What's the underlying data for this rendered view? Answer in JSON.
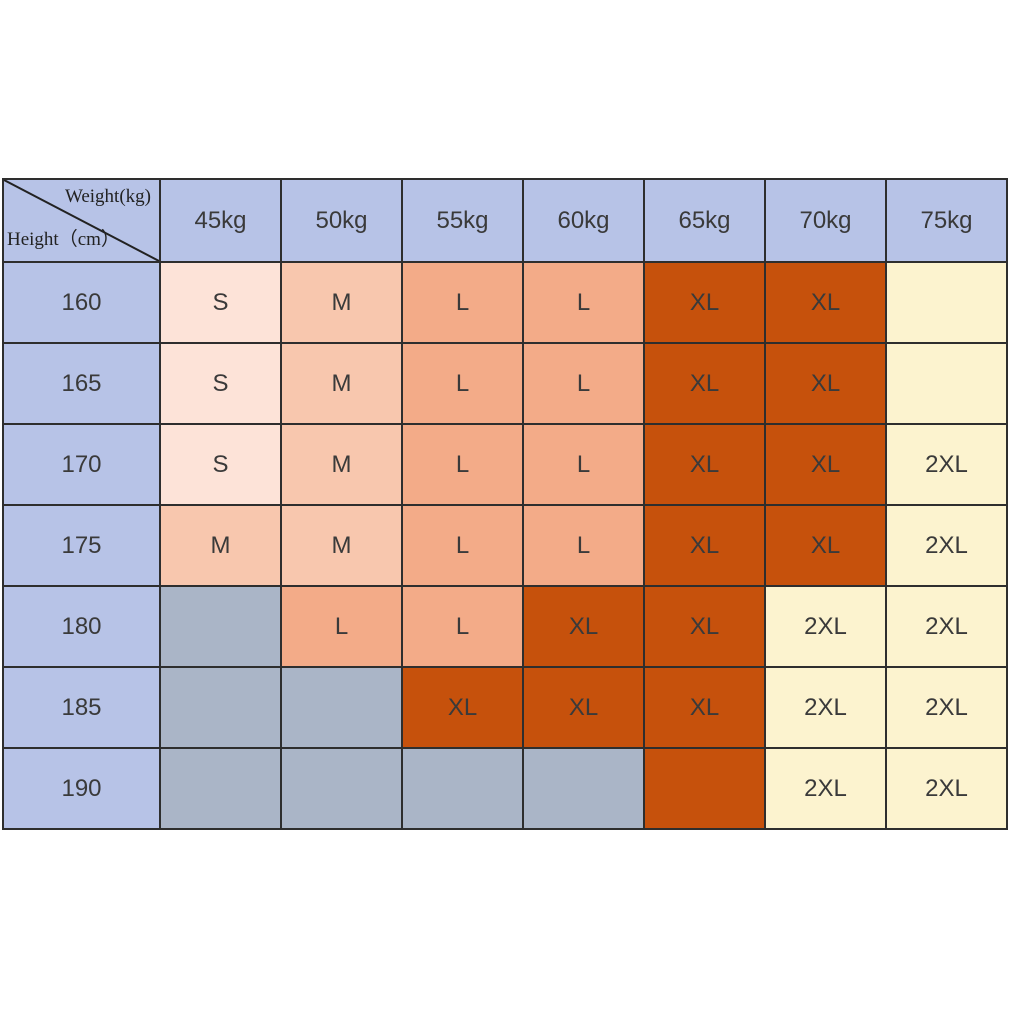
{
  "chart_data": {
    "type": "table",
    "corner": {
      "column_axis_label": "Weight(kg)",
      "row_axis_label": "Height（cm）"
    },
    "weights": [
      "45kg",
      "50kg",
      "55kg",
      "60kg",
      "65kg",
      "70kg",
      "75kg"
    ],
    "heights": [
      "160",
      "165",
      "170",
      "175",
      "180",
      "185",
      "190"
    ],
    "sizes": [
      [
        "S",
        "M",
        "L",
        "L",
        "XL",
        "XL",
        ""
      ],
      [
        "S",
        "M",
        "L",
        "L",
        "XL",
        "XL",
        ""
      ],
      [
        "S",
        "M",
        "L",
        "L",
        "XL",
        "XL",
        "2XL"
      ],
      [
        "M",
        "M",
        "L",
        "L",
        "XL",
        "XL",
        "2XL"
      ],
      [
        "",
        "L",
        "L",
        "XL",
        "XL",
        "2XL",
        "2XL"
      ],
      [
        "",
        "",
        "XL",
        "XL",
        "XL",
        "2XL",
        "2XL"
      ],
      [
        "",
        "",
        "",
        "",
        "",
        "2XL",
        "2XL"
      ]
    ],
    "cell_fill": [
      [
        "S",
        "M",
        "L",
        "L",
        "XL",
        "XL",
        "2XL"
      ],
      [
        "S",
        "M",
        "L",
        "L",
        "XL",
        "XL",
        "2XL"
      ],
      [
        "S",
        "M",
        "L",
        "L",
        "XL",
        "XL",
        "2XL"
      ],
      [
        "M",
        "M",
        "L",
        "L",
        "XL",
        "XL",
        "2XL"
      ],
      [
        "none",
        "L",
        "L",
        "XL",
        "XL",
        "2XL",
        "2XL"
      ],
      [
        "none",
        "none",
        "XL",
        "XL",
        "XL",
        "2XL",
        "2XL"
      ],
      [
        "none",
        "none",
        "none",
        "none",
        "XL",
        "2XL",
        "2XL"
      ]
    ],
    "size_colors": {
      "S": "#fde3d8",
      "M": "#f8c7ae",
      "L": "#f3ab88",
      "XL": "#c6510c",
      "2XL": "#fcf3cf",
      "none": "#aab5c7"
    },
    "header_color": "#b7c3e7"
  }
}
